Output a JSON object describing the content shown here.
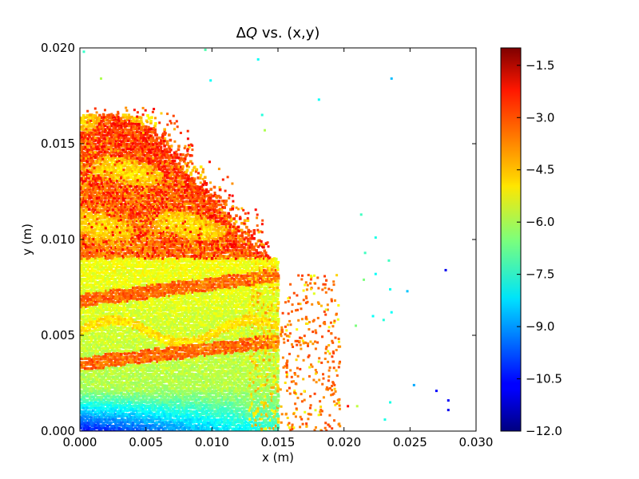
{
  "chart_data": {
    "type": "scatter",
    "title": "ΔQ vs. (x,y)",
    "title_parts": {
      "symbol": "Δ",
      "var": "Q",
      "rest": " vs. (x,y)"
    },
    "xlabel": "x (m)",
    "ylabel": "y (m)",
    "xlim": [
      0.0,
      0.03
    ],
    "ylim": [
      0.0,
      0.02
    ],
    "xticks": [
      0.0,
      0.005,
      0.01,
      0.015,
      0.02,
      0.025,
      0.03
    ],
    "xtick_labels": [
      "0.000",
      "0.005",
      "0.010",
      "0.015",
      "0.020",
      "0.025",
      "0.030"
    ],
    "yticks": [
      0.0,
      0.005,
      0.01,
      0.015,
      0.02
    ],
    "ytick_labels": [
      "0.000",
      "0.005",
      "0.010",
      "0.015",
      "0.020"
    ],
    "grid": false,
    "colormap": "jet",
    "colorbar": {
      "range": [
        -12.0,
        -1.0
      ],
      "ticks": [
        -1.5,
        -3.0,
        -4.5,
        -6.0,
        -7.5,
        -9.0,
        -10.5,
        -12.0
      ],
      "tick_labels": [
        "−1.5",
        "−3.0",
        "−4.5",
        "−6.0",
        "−7.5",
        "−9.0",
        "−10.5",
        "−12.0"
      ]
    },
    "isolated_points": [
      {
        "x": 0.0003,
        "y": 0.0198,
        "v": -7.3
      },
      {
        "x": 0.0016,
        "y": 0.0184,
        "v": -6.0
      },
      {
        "x": 0.0095,
        "y": 0.0199,
        "v": -7.0
      },
      {
        "x": 0.0099,
        "y": 0.0183,
        "v": -7.8
      },
      {
        "x": 0.0135,
        "y": 0.0194,
        "v": -7.8
      },
      {
        "x": 0.0181,
        "y": 0.0173,
        "v": -7.8
      },
      {
        "x": 0.0236,
        "y": 0.0184,
        "v": -8.6
      },
      {
        "x": 0.0138,
        "y": 0.0165,
        "v": -7.5
      },
      {
        "x": 0.014,
        "y": 0.0157,
        "v": -6.0
      },
      {
        "x": 0.0213,
        "y": 0.0113,
        "v": -7.2
      },
      {
        "x": 0.0224,
        "y": 0.0101,
        "v": -7.6
      },
      {
        "x": 0.0216,
        "y": 0.0093,
        "v": -7.2
      },
      {
        "x": 0.0234,
        "y": 0.0089,
        "v": -7.2
      },
      {
        "x": 0.0224,
        "y": 0.0082,
        "v": -7.8
      },
      {
        "x": 0.0215,
        "y": 0.0079,
        "v": -6.5
      },
      {
        "x": 0.0235,
        "y": 0.0074,
        "v": -7.7
      },
      {
        "x": 0.0248,
        "y": 0.0073,
        "v": -8.5
      },
      {
        "x": 0.0277,
        "y": 0.0084,
        "v": -10.8
      },
      {
        "x": 0.0236,
        "y": 0.0062,
        "v": -7.8
      },
      {
        "x": 0.0222,
        "y": 0.006,
        "v": -7.8
      },
      {
        "x": 0.023,
        "y": 0.0058,
        "v": -7.5
      },
      {
        "x": 0.0209,
        "y": 0.0055,
        "v": -6.5
      },
      {
        "x": 0.0253,
        "y": 0.0024,
        "v": -8.8
      },
      {
        "x": 0.027,
        "y": 0.0021,
        "v": -10.6
      },
      {
        "x": 0.0279,
        "y": 0.0016,
        "v": -10.7
      },
      {
        "x": 0.0279,
        "y": 0.0011,
        "v": -10.8
      },
      {
        "x": 0.0235,
        "y": 0.0015,
        "v": -7.6
      },
      {
        "x": 0.0231,
        "y": 0.0006,
        "v": -7.6
      },
      {
        "x": 0.021,
        "y": 0.0013,
        "v": -5.8
      },
      {
        "x": 0.0193,
        "y": 0.0022,
        "v": -4.6
      },
      {
        "x": 0.0203,
        "y": 0.0013,
        "v": -2.5
      }
    ]
  }
}
